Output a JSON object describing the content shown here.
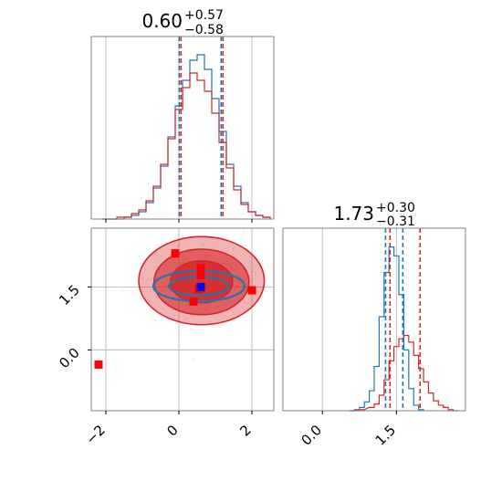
{
  "chart_data": {
    "type": "corner",
    "colors": {
      "blue": "#1f77b4",
      "red": "#d62728",
      "grid": "#b0b0b0",
      "axis": "#808080"
    },
    "panels": [
      {
        "id": "param0-hist",
        "type": "histogram",
        "title": {
          "main": "0.60",
          "sup": "+0.57",
          "sub": "−0.58"
        },
        "xlim": [
          -2.4,
          2.6
        ],
        "quantiles": [
          0.02,
          1.17
        ],
        "series": [
          {
            "name": "",
            "color": "#1f77b4",
            "x": [
              -2.0,
              -1.8,
              -1.6,
              -1.4,
              -1.2,
              -1.0,
              -0.8,
              -0.6,
              -0.4,
              -0.2,
              0.0,
              0.2,
              0.4,
              0.6,
              0.8,
              1.0,
              1.2,
              1.4,
              1.6,
              1.8,
              2.0,
              2.2,
              2.4
            ],
            "values": [
              0,
              0,
              0,
              1,
              2,
              4,
              9,
              17,
              29,
              45,
              62,
              76,
              87,
              90,
              82,
              66,
              48,
              30,
              18,
              9,
              4,
              2,
              1
            ]
          },
          {
            "name": "",
            "color": "#d62728",
            "x": [
              -2.0,
              -1.8,
              -1.6,
              -1.4,
              -1.2,
              -1.0,
              -0.8,
              -0.6,
              -0.4,
              -0.2,
              0.0,
              0.2,
              0.4,
              0.6,
              0.8,
              1.0,
              1.2,
              1.4,
              1.6,
              1.8,
              2.0,
              2.2,
              2.4
            ],
            "values": [
              0,
              0,
              1,
              1,
              3,
              5,
              10,
              18,
              30,
              44,
              60,
              72,
              80,
              76,
              70,
              58,
              42,
              28,
              16,
              8,
              4,
              2,
              1
            ]
          }
        ]
      },
      {
        "id": "param1-hist",
        "type": "histogram",
        "title": {
          "main": "1.73",
          "sup": "+0.30",
          "sub": "−0.31"
        },
        "xlim": [
          -0.8,
          2.9
        ],
        "xticks": [
          0.0,
          1.5
        ],
        "xtick_labels": [
          "0.0",
          "1.5"
        ],
        "quantiles_blue": [
          1.28,
          1.63
        ],
        "quantiles_red": [
          1.37,
          1.98
        ],
        "series": [
          {
            "name": "",
            "color": "#1f77b4",
            "x": [
              0.6,
              0.7,
              0.8,
              0.9,
              1.0,
              1.1,
              1.2,
              1.3,
              1.4,
              1.5,
              1.6,
              1.7,
              1.8,
              1.9,
              2.0
            ],
            "values": [
              0,
              1,
              3,
              8,
              18,
              40,
              85,
              125,
              148,
              140,
              105,
              55,
              20,
              5,
              1
            ]
          },
          {
            "name": "",
            "color": "#d62728",
            "x": [
              0.6,
              0.8,
              1.0,
              1.1,
              1.2,
              1.3,
              1.4,
              1.5,
              1.6,
              1.7,
              1.8,
              1.9,
              2.0,
              2.1,
              2.2,
              2.3,
              2.4,
              2.5,
              2.6,
              2.7
            ],
            "values": [
              0,
              1,
              3,
              6,
              14,
              28,
              45,
              58,
              65,
              68,
              62,
              50,
              38,
              26,
              16,
              9,
              5,
              3,
              1,
              0
            ]
          }
        ]
      },
      {
        "id": "joint-2d",
        "type": "contour",
        "xlim": [
          -2.4,
          2.6
        ],
        "ylim": [
          -1.45,
          2.9
        ],
        "xticks": [
          -2,
          0,
          2
        ],
        "xtick_labels": [
          "−2",
          "0",
          "2"
        ],
        "yticks": [
          0.0,
          1.5
        ],
        "ytick_labels": [
          "0.0",
          "1.5"
        ],
        "red_contours": [
          {
            "cx": 0.62,
            "cy": 1.65,
            "rx": 1.72,
            "ry": 1.05
          },
          {
            "cx": 0.62,
            "cy": 1.62,
            "rx": 1.3,
            "ry": 0.78
          },
          {
            "cx": 0.62,
            "cy": 1.62,
            "rx": 0.85,
            "ry": 0.5
          }
        ],
        "blue_contours": [
          {
            "cx": 0.55,
            "cy": 1.52,
            "rx": 1.25,
            "ry": 0.36
          },
          {
            "cx": 0.55,
            "cy": 1.52,
            "rx": 0.82,
            "ry": 0.22
          }
        ],
        "red_points": [
          [
            -2.2,
            -0.35
          ],
          [
            -0.1,
            2.3
          ],
          [
            0.4,
            1.15
          ],
          [
            0.6,
            1.78
          ],
          [
            2.0,
            1.42
          ],
          [
            0.6,
            1.95
          ],
          [
            0.55,
            1.45
          ]
        ],
        "blue_points": [
          [
            0.6,
            1.5
          ]
        ]
      }
    ]
  }
}
